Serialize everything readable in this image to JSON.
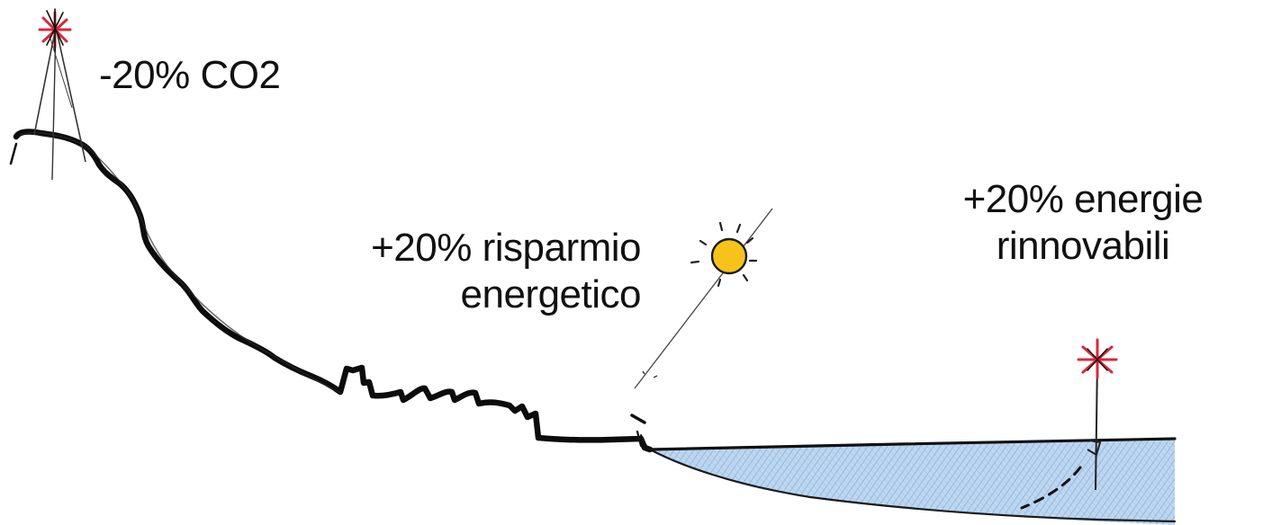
{
  "labels": {
    "co2": "-20% CO2",
    "risparmio": {
      "line1": "+20% risparmio",
      "line2": "energetico"
    },
    "rinnovabili": {
      "line1": "+20% energie",
      "line2": "rinnovabili"
    }
  },
  "colors": {
    "ink": "#111111",
    "marker_red": "#d8283a",
    "sun_fill": "#f7c21a",
    "water_fill": "#9cc3e6",
    "water_hatch": "#6f9fd0"
  },
  "icons": {
    "summit": "tripod-flag-icon",
    "sun": "sun-icon",
    "lake_marker": "pole-flag-icon"
  }
}
